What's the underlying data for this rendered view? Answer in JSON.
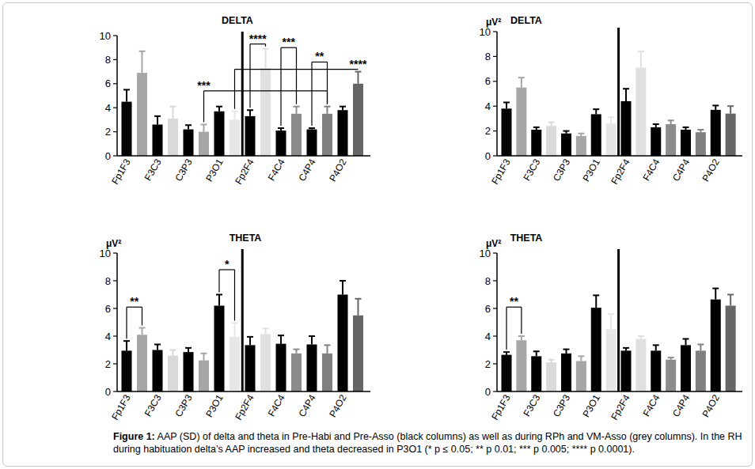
{
  "chart_data": [
    {
      "type": "bar",
      "title": "DELTA",
      "categories": [
        "Fp1F3",
        "F3C3",
        "C3P3",
        "P3O1",
        "Fp2F4",
        "F4C4",
        "C4P4",
        "P4O2"
      ],
      "ylim": [
        0,
        10
      ],
      "yticks": [
        0,
        2,
        4,
        6,
        8,
        10
      ],
      "grid": false,
      "series": [
        {
          "color": "#000000",
          "values": [
            4.5,
            2.6,
            2.2,
            3.7,
            3.3,
            2.1,
            2.2,
            3.8
          ],
          "errors": [
            1.0,
            0.7,
            0.35,
            0.4,
            0.5,
            0.2,
            0.1,
            0.3
          ]
        },
        {
          "colors": [
            "#a6a6a6",
            "#d9d9d9",
            "#a6a6a6",
            "#e6e6e6",
            "#e0e0e0",
            "#8c8c8c",
            "#808080",
            "#666666"
          ],
          "values": [
            6.9,
            3.1,
            2.0,
            3.0,
            7.3,
            3.5,
            3.5,
            6.0
          ],
          "errors": [
            1.8,
            1.0,
            0.6,
            0.7,
            1.6,
            0.6,
            0.6,
            1.0
          ]
        }
      ],
      "annotations": [
        {
          "text": "****",
          "from": [
            0,
            4
          ],
          "to": [
            1,
            4
          ],
          "y": 9.3
        },
        {
          "text": "***",
          "from": [
            0,
            5
          ],
          "to": [
            1,
            5
          ],
          "y": 9.0
        },
        {
          "text": "**",
          "from": [
            0,
            6
          ],
          "to": [
            1,
            6
          ],
          "y": 7.8
        },
        {
          "text": "***",
          "from": [
            1,
            2
          ],
          "to": [
            1,
            6
          ],
          "y": 5.4
        },
        {
          "text": "****",
          "from": [
            1,
            7
          ],
          "to": [
            1,
            3
          ],
          "y": 7.2
        }
      ]
    },
    {
      "type": "bar",
      "title": "DELTA",
      "y_label": "μV²",
      "categories": [
        "Fp1F3",
        "F3C3",
        "C3P3",
        "P3O1",
        "Fp2F4",
        "F4C4",
        "C4P4",
        "P4O2"
      ],
      "ylim": [
        0,
        10
      ],
      "yticks": [
        0,
        2,
        4,
        6,
        8,
        10
      ],
      "grid": false,
      "series": [
        {
          "color": "#000000",
          "values": [
            3.8,
            2.1,
            1.8,
            3.35,
            4.4,
            2.3,
            2.1,
            3.7
          ],
          "errors": [
            0.5,
            0.2,
            0.2,
            0.4,
            1.0,
            0.25,
            0.2,
            0.35
          ]
        },
        {
          "colors": [
            "#a6a6a6",
            "#d9d9d9",
            "#a6a6a6",
            "#e6e6e6",
            "#e0e0e0",
            "#8c8c8c",
            "#808080",
            "#666666"
          ],
          "values": [
            5.5,
            2.4,
            1.6,
            2.6,
            7.1,
            2.55,
            1.9,
            3.4
          ],
          "errors": [
            0.8,
            0.3,
            0.2,
            0.5,
            1.3,
            0.3,
            0.2,
            0.6
          ]
        }
      ]
    },
    {
      "type": "bar",
      "title": "THETA",
      "y_label": "μV²",
      "categories": [
        "Fp1F3",
        "F3C3",
        "C3P3",
        "P3O1",
        "Fp2F4",
        "F4C4",
        "C4P4",
        "P4O2"
      ],
      "ylim": [
        0,
        10
      ],
      "yticks": [
        0,
        2,
        4,
        6,
        8,
        10
      ],
      "grid": false,
      "series": [
        {
          "color": "#000000",
          "values": [
            2.95,
            3.0,
            2.85,
            6.2,
            3.35,
            3.45,
            3.4,
            7.0
          ],
          "errors": [
            0.7,
            0.4,
            0.3,
            0.8,
            0.6,
            0.6,
            0.6,
            1.0
          ]
        },
        {
          "colors": [
            "#a6a6a6",
            "#d9d9d9",
            "#a6a6a6",
            "#e6e6e6",
            "#e0e0e0",
            "#8c8c8c",
            "#808080",
            "#666666"
          ],
          "values": [
            4.1,
            2.6,
            2.25,
            3.95,
            4.15,
            2.75,
            2.75,
            5.5
          ],
          "errors": [
            0.5,
            0.4,
            0.5,
            1.0,
            0.4,
            0.3,
            0.6,
            1.2
          ]
        }
      ],
      "annotations": [
        {
          "text": "**",
          "from": [
            0,
            0
          ],
          "to": [
            1,
            0
          ],
          "y": 6.1
        },
        {
          "text": "*",
          "from": [
            0,
            3
          ],
          "to": [
            1,
            3
          ],
          "y": 8.8
        }
      ]
    },
    {
      "type": "bar",
      "title": "THETA",
      "y_label": "μV²",
      "categories": [
        "Fp1F3",
        "F3C3",
        "C3P3",
        "P3O1",
        "Fp2F4",
        "F4C4",
        "C4P4",
        "P4O2"
      ],
      "ylim": [
        0,
        10
      ],
      "yticks": [
        0,
        2,
        4,
        6,
        8,
        10
      ],
      "grid": false,
      "series": [
        {
          "color": "#000000",
          "values": [
            2.65,
            2.55,
            2.75,
            6.05,
            2.95,
            2.95,
            3.35,
            6.65
          ],
          "errors": [
            0.2,
            0.35,
            0.3,
            0.9,
            0.2,
            0.4,
            0.45,
            0.8
          ]
        },
        {
          "colors": [
            "#a6a6a6",
            "#d9d9d9",
            "#a6a6a6",
            "#e6e6e6",
            "#e0e0e0",
            "#8c8c8c",
            "#808080",
            "#666666"
          ],
          "values": [
            3.7,
            2.1,
            2.2,
            4.5,
            3.8,
            2.3,
            2.95,
            6.2
          ],
          "errors": [
            0.3,
            0.2,
            0.35,
            1.1,
            0.2,
            0.15,
            0.45,
            0.8
          ]
        }
      ],
      "annotations": [
        {
          "text": "**",
          "from": [
            0,
            0
          ],
          "to": [
            1,
            0
          ],
          "y": 6.1
        }
      ]
    }
  ],
  "caption": {
    "label": "Figure 1:",
    "text": "AAP (SD) of delta and theta in Pre-Habi and Pre-Asso (black columns) as well as during RPh and VM-Asso (grey columns). In the RH during habituation delta’s AAP increased and theta decreased in P3O1 (* p ≤ 0.05; ** p 0.01; *** p 0.005; **** p 0.0001)."
  }
}
